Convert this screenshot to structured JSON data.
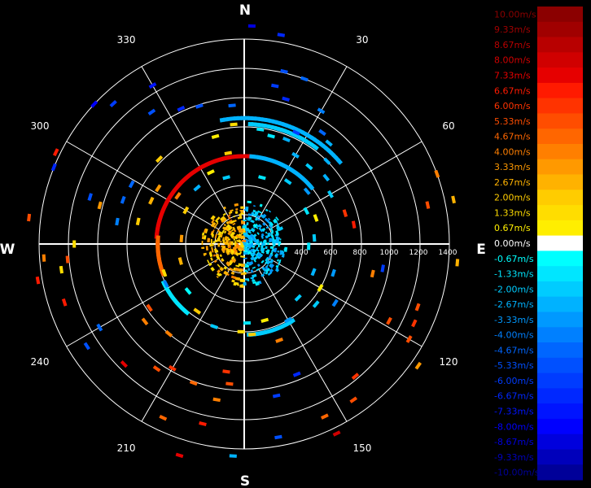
{
  "chart_data": {
    "type": "polar_scatter",
    "cardinals": [
      "N",
      "E",
      "S",
      "W"
    ],
    "azimuth_labels": [
      "30",
      "60",
      "120",
      "150",
      "210",
      "240",
      "300",
      "330"
    ],
    "range_labels": [
      "400",
      "600",
      "800",
      "1000",
      "1200",
      "1400"
    ],
    "range_max": 1400,
    "colorbar": {
      "labels": [
        "10.00m/s",
        "9.33m/s",
        "8.67m/s",
        "8.00m/s",
        "7.33m/s",
        "6.67m/s",
        "6.00m/s",
        "5.33m/s",
        "4.67m/s",
        "4.00m/s",
        "3.33m/s",
        "2.67m/s",
        "2.00m/s",
        "1.33m/s",
        "0.67m/s",
        "0.00m/s",
        "-0.67m/s",
        "-1.33m/s",
        "-2.00m/s",
        "-2.67m/s",
        "-3.33m/s",
        "-4.00m/s",
        "-4.67m/s",
        "-5.33m/s",
        "-6.00m/s",
        "-6.67m/s",
        "-7.33m/s",
        "-8.00m/s",
        "-8.67m/s",
        "-9.33m/s",
        "-10.00m/s"
      ],
      "colors": [
        "#8b0000",
        "#a00000",
        "#b80000",
        "#d00000",
        "#e60000",
        "#ff1a00",
        "#ff3300",
        "#ff4d00",
        "#ff6600",
        "#ff7f00",
        "#ff9900",
        "#ffb200",
        "#ffcc00",
        "#ffdd00",
        "#ffee00",
        "#ffffff",
        "#00ffff",
        "#00e6ff",
        "#00ccff",
        "#00b2ff",
        "#0099ff",
        "#0080ff",
        "#0066ff",
        "#0050ff",
        "#003cff",
        "#0028ff",
        "#0014ff",
        "#0000ff",
        "#0000dd",
        "#0000bb",
        "#000099"
      ]
    },
    "points": [
      {
        "az": 2,
        "r": 1490,
        "v": -8.5
      },
      {
        "az": 10,
        "r": 1450,
        "v": -7
      },
      {
        "az": 13,
        "r": 1210,
        "v": -5.5
      },
      {
        "az": 11,
        "r": 1100,
        "v": -6
      },
      {
        "az": 16,
        "r": 1030,
        "v": -6.5
      },
      {
        "az": 20,
        "r": 1200,
        "v": -4.5
      },
      {
        "az": 30,
        "r": 1050,
        "v": -4
      },
      {
        "az": 35,
        "r": 930,
        "v": -5
      },
      {
        "az": 40,
        "r": 900,
        "v": -3
      },
      {
        "az": 45,
        "r": 800,
        "v": -3
      },
      {
        "az": 51,
        "r": 720,
        "v": -2.5
      },
      {
        "az": 25,
        "r": 840,
        "v": -6
      },
      {
        "az": 330,
        "r": 1250,
        "v": -7.5
      },
      {
        "az": 342,
        "r": 990,
        "v": -5.5
      },
      {
        "az": 355,
        "r": 950,
        "v": -5
      },
      {
        "az": 5,
        "r": 820,
        "v": -2
      },
      {
        "az": 8,
        "r": 790,
        "v": -1.3
      },
      {
        "az": 14,
        "r": 760,
        "v": -1.3
      },
      {
        "az": 22,
        "r": 770,
        "v": -2.7
      },
      {
        "az": 30,
        "r": 700,
        "v": -2.7
      },
      {
        "az": 40,
        "r": 690,
        "v": -2
      },
      {
        "az": 60,
        "r": 680,
        "v": -2
      },
      {
        "az": 62,
        "r": 480,
        "v": -1.3
      },
      {
        "az": 73,
        "r": 720,
        "v": 6
      },
      {
        "az": 80,
        "r": 760,
        "v": 6.5
      },
      {
        "az": 78,
        "r": 1280,
        "v": 5
      },
      {
        "az": 70,
        "r": 1400,
        "v": 4
      },
      {
        "az": 78,
        "r": 1460,
        "v": 2.7
      },
      {
        "az": 95,
        "r": 1460,
        "v": 2.7
      },
      {
        "az": 100,
        "r": 960,
        "v": -6
      },
      {
        "az": 103,
        "r": 900,
        "v": 4
      },
      {
        "az": 110,
        "r": 1260,
        "v": 5
      },
      {
        "az": 115,
        "r": 1280,
        "v": 6
      },
      {
        "az": 120,
        "r": 1300,
        "v": 5
      },
      {
        "az": 125,
        "r": 1450,
        "v": 3.3
      },
      {
        "az": 118,
        "r": 1120,
        "v": 5.3
      },
      {
        "az": 123,
        "r": 740,
        "v": -4
      },
      {
        "az": 108,
        "r": 640,
        "v": -3.3
      },
      {
        "az": 130,
        "r": 640,
        "v": -2
      },
      {
        "az": 140,
        "r": 1180,
        "v": 6
      },
      {
        "az": 145,
        "r": 1300,
        "v": 5
      },
      {
        "az": 155,
        "r": 1300,
        "v": 4.7
      },
      {
        "az": 170,
        "r": 1340,
        "v": -5.5
      },
      {
        "az": 168,
        "r": 1060,
        "v": -6
      },
      {
        "az": 158,
        "r": 960,
        "v": -7
      },
      {
        "az": 160,
        "r": 700,
        "v": 4
      },
      {
        "az": 175,
        "r": 620,
        "v": 2
      },
      {
        "az": 178,
        "r": 540,
        "v": -1.3
      },
      {
        "az": 165,
        "r": 540,
        "v": 0.7
      },
      {
        "az": 182,
        "r": 600,
        "v": 1.3
      },
      {
        "az": 186,
        "r": 960,
        "v": 5
      },
      {
        "az": 188,
        "r": 880,
        "v": 6
      },
      {
        "az": 190,
        "r": 1080,
        "v": 4
      },
      {
        "az": 193,
        "r": 1260,
        "v": 6.6
      },
      {
        "az": 205,
        "r": 1310,
        "v": 4.7
      },
      {
        "az": 200,
        "r": 1010,
        "v": 4.7
      },
      {
        "az": 210,
        "r": 980,
        "v": 6
      },
      {
        "az": 215,
        "r": 1040,
        "v": 5
      },
      {
        "az": 220,
        "r": 800,
        "v": 4
      },
      {
        "az": 225,
        "r": 1160,
        "v": 7
      },
      {
        "az": 232,
        "r": 860,
        "v": 4
      },
      {
        "az": 236,
        "r": 780,
        "v": 5
      },
      {
        "az": 240,
        "r": 1140,
        "v": -5
      },
      {
        "az": 237,
        "r": 1280,
        "v": -5.5
      },
      {
        "az": 243,
        "r": 600,
        "v": -4
      },
      {
        "az": 250,
        "r": 580,
        "v": 1.3
      },
      {
        "az": 260,
        "r": 1430,
        "v": 6.6
      },
      {
        "az": 265,
        "r": 1210,
        "v": 5
      },
      {
        "az": 270,
        "r": 1160,
        "v": 1.3
      },
      {
        "az": 280,
        "r": 880,
        "v": -4
      },
      {
        "az": 282,
        "r": 740,
        "v": 2
      },
      {
        "az": 285,
        "r": 1020,
        "v": 3.3
      },
      {
        "az": 290,
        "r": 880,
        "v": -4.7
      },
      {
        "az": 287,
        "r": 1100,
        "v": -5.3
      },
      {
        "az": 295,
        "r": 700,
        "v": 2.7
      },
      {
        "az": 298,
        "r": 870,
        "v": -5
      },
      {
        "az": 303,
        "r": 700,
        "v": 3.3
      },
      {
        "az": 306,
        "r": 560,
        "v": 4
      },
      {
        "az": 315,
        "r": 820,
        "v": 2
      },
      {
        "az": 325,
        "r": 1100,
        "v": -5.5
      },
      {
        "az": 335,
        "r": 1020,
        "v": -7
      },
      {
        "az": 345,
        "r": 760,
        "v": 0.7
      },
      {
        "az": 350,
        "r": 630,
        "v": 2
      },
      {
        "az": 355,
        "r": 820,
        "v": 1.3
      },
      {
        "az": 266,
        "r": 1370,
        "v": 4
      },
      {
        "az": 277,
        "r": 1480,
        "v": 5
      },
      {
        "az": 292,
        "r": 1400,
        "v": -7
      },
      {
        "az": 296,
        "r": 1430,
        "v": 6.7
      },
      {
        "az": 313,
        "r": 1400,
        "v": -8
      },
      {
        "az": 317,
        "r": 1310,
        "v": -6
      },
      {
        "az": 252,
        "r": 1290,
        "v": 6.8
      },
      {
        "az": 197,
        "r": 1510,
        "v": 7
      },
      {
        "az": 183,
        "r": 1450,
        "v": -3
      },
      {
        "az": 154,
        "r": 1440,
        "v": 8
      },
      {
        "az": 262,
        "r": 1260,
        "v": 1.3
      },
      {
        "az": 70,
        "r": 520,
        "v": 0.7
      },
      {
        "az": 85,
        "r": 480,
        "v": -2
      },
      {
        "az": 92,
        "r": 440,
        "v": -1.3
      },
      {
        "az": 112,
        "r": 510,
        "v": -2.7
      },
      {
        "az": 120,
        "r": 600,
        "v": 0.67
      },
      {
        "az": 135,
        "r": 520,
        "v": -2
      },
      {
        "az": 150,
        "r": 600,
        "v": -3.3
      },
      {
        "az": 200,
        "r": 600,
        "v": -2
      },
      {
        "az": 215,
        "r": 560,
        "v": 2
      },
      {
        "az": 230,
        "r": 500,
        "v": -1
      },
      {
        "az": 255,
        "r": 450,
        "v": 2.7
      },
      {
        "az": 275,
        "r": 430,
        "v": 3.3
      },
      {
        "az": 300,
        "r": 460,
        "v": 2
      },
      {
        "az": 320,
        "r": 500,
        "v": -2.7
      },
      {
        "az": 335,
        "r": 540,
        "v": 0.7
      },
      {
        "az": 345,
        "r": 470,
        "v": -2
      },
      {
        "az": 15,
        "r": 470,
        "v": -1.3
      },
      {
        "az": 35,
        "r": 520,
        "v": -2
      },
      {
        "az": 50,
        "r": 560,
        "v": -3.3
      }
    ],
    "arcs": [
      {
        "r": 600,
        "az_from": 275,
        "az_to": 5,
        "v": 7.3
      },
      {
        "r": 590,
        "az_from": 250,
        "az_to": 275,
        "v": 4.7
      },
      {
        "r": 600,
        "az_from": 5,
        "az_to": 50,
        "v": -2.7
      },
      {
        "r": 620,
        "az_from": 148,
        "az_to": 178,
        "v": -2
      },
      {
        "r": 610,
        "az_from": 220,
        "az_to": 245,
        "v": -1.3
      },
      {
        "r": 860,
        "az_from": 350,
        "az_to": 50,
        "v": -2.7
      },
      {
        "r": 820,
        "az_from": 3,
        "az_to": 38,
        "v": -2
      }
    ],
    "clusters": [
      {
        "az_from": 0,
        "az_to": 360,
        "r_from": 0,
        "r_to": 290,
        "pos_az": [
          180,
          360
        ],
        "v_pos": 2.7,
        "v_neg": -2.7
      }
    ]
  }
}
